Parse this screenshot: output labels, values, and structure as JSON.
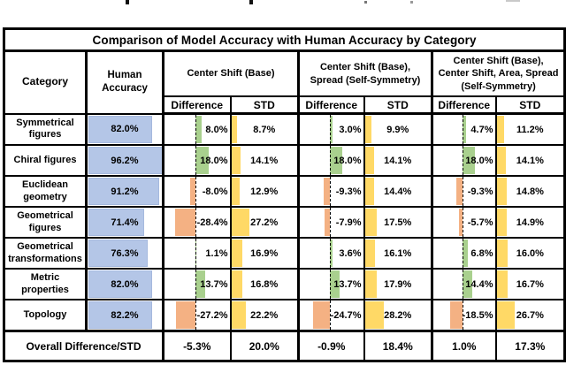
{
  "table": {
    "title": "Comparison of Model Accuracy with Human Accuracy by Category",
    "headers": {
      "category": "Category",
      "human_accuracy": "Human\nAccuracy",
      "groups": [
        {
          "label": "Center Shift (Base)"
        },
        {
          "label": "Center Shift (Base),\nSpread (Self-Symmetry)"
        },
        {
          "label": "Center Shift (Base),\nCenter Shift, Area, Spread\n(Self-Symmetry)"
        }
      ],
      "difference": "Difference",
      "std": "STD"
    },
    "rows": [
      {
        "category": "Symmetrical figures",
        "human": 82.0,
        "values": [
          8.0,
          8.7,
          3.0,
          9.9,
          4.7,
          11.2
        ]
      },
      {
        "category": "Chiral figures",
        "human": 96.2,
        "values": [
          18.0,
          14.1,
          18.0,
          14.1,
          18.0,
          14.1
        ]
      },
      {
        "category": "Euclidean geometry",
        "human": 91.2,
        "values": [
          -8.0,
          12.9,
          -9.3,
          14.4,
          -9.3,
          14.8
        ]
      },
      {
        "category": "Geometrical figures",
        "human": 71.4,
        "values": [
          -28.4,
          27.2,
          -7.9,
          17.5,
          -5.7,
          14.9
        ]
      },
      {
        "category": "Geometrical transformations",
        "human": 76.3,
        "values": [
          1.1,
          16.9,
          3.6,
          16.1,
          6.8,
          16.0
        ]
      },
      {
        "category": "Metric properties",
        "human": 82.0,
        "values": [
          13.7,
          16.8,
          13.7,
          17.9,
          14.4,
          16.7
        ]
      },
      {
        "category": "Topology",
        "human": 82.2,
        "values": [
          -27.2,
          22.2,
          -24.7,
          28.2,
          -18.5,
          26.7
        ]
      }
    ],
    "overall": {
      "label": "Overall Difference/STD",
      "values": [
        -5.3,
        20.0,
        -0.9,
        18.4,
        1.0,
        17.3
      ]
    }
  },
  "colors": {
    "human_bar": "#b4c6e7",
    "positive_bar": "#a9d08e",
    "negative_bar": "#f4b183",
    "std_bar": "#ffd966",
    "border": "#000000"
  }
}
